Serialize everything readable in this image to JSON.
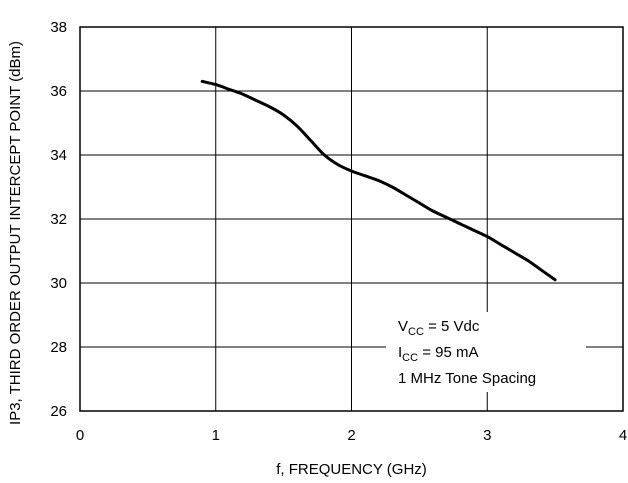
{
  "chart_data": {
    "type": "line",
    "title": "",
    "xlabel": "f, FREQUENCY (GHz)",
    "ylabel": "IP3, THIRD ORDER OUTPUT INTERCEPT POINT (dBm)",
    "xlim": [
      0,
      4
    ],
    "ylim": [
      26,
      38
    ],
    "x_ticks": [
      "0",
      "1",
      "2",
      "3",
      "4"
    ],
    "y_ticks": [
      "26",
      "28",
      "30",
      "32",
      "34",
      "36",
      "38"
    ],
    "grid": true,
    "legend": "none",
    "series": [
      {
        "x": [
          0.9,
          1.0,
          1.1,
          1.2,
          1.3,
          1.4,
          1.5,
          1.6,
          1.7,
          1.8,
          1.9,
          2.0,
          2.1,
          2.2,
          2.3,
          2.4,
          2.5,
          2.6,
          2.7,
          2.8,
          2.9,
          3.0,
          3.1,
          3.2,
          3.3,
          3.4,
          3.5
        ],
        "y": [
          36.3,
          36.2,
          36.05,
          35.9,
          35.7,
          35.5,
          35.25,
          34.9,
          34.45,
          34.0,
          33.7,
          33.5,
          33.35,
          33.2,
          33.0,
          32.75,
          32.5,
          32.25,
          32.05,
          31.85,
          31.65,
          31.45,
          31.2,
          30.95,
          30.7,
          30.4,
          30.1
        ],
        "color": "#000000"
      }
    ],
    "annotation": {
      "line1_main": "V",
      "line1_sub": "CC",
      "line1_rest": " = 5 Vdc",
      "line2_main": "I",
      "line2_sub": "CC",
      "line2_rest": " = 95 mA",
      "line3": "1 MHz Tone Spacing"
    }
  }
}
